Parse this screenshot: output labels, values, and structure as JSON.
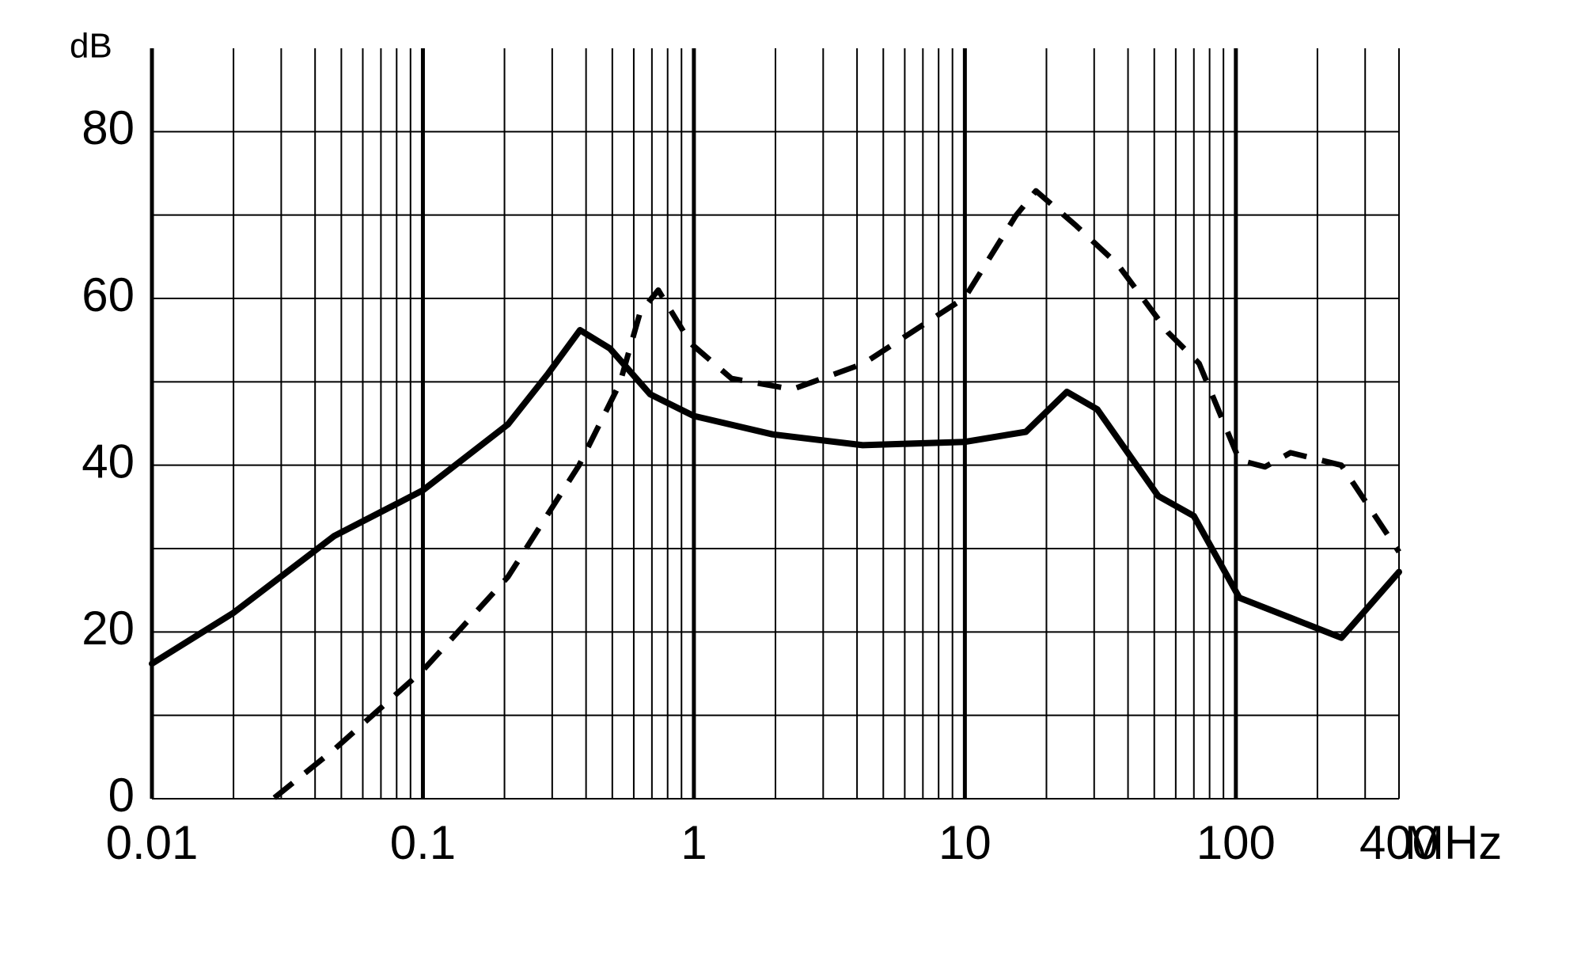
{
  "chart_data": {
    "type": "line",
    "x_label": "MHz",
    "y_label": "dB",
    "xscale": "log",
    "xlim": [
      0.01,
      400
    ],
    "ylim": [
      0,
      90
    ],
    "xticks": [
      0.01,
      0.1,
      1,
      10,
      100,
      400
    ],
    "yticks": [
      0,
      20,
      40,
      60,
      80
    ],
    "grid": true,
    "series": [
      {
        "color": "#000000",
        "dashed": false,
        "x": [
          0.01,
          0.02,
          0.047,
          0.1,
          0.206,
          0.29,
          0.38,
          0.49,
          0.69,
          1,
          1.95,
          4.2,
          10,
          16.8,
          23.8,
          30.8,
          51.7,
          70,
          103,
          159,
          245,
          400
        ],
        "values": [
          16.2,
          22.3,
          31.5,
          37,
          44.9,
          51,
          56.2,
          54,
          48.5,
          45.9,
          43.7,
          42.4,
          42.8,
          44,
          48.8,
          46.7,
          36.3,
          33.9,
          24.1,
          21.7,
          19.3,
          27.2
        ]
      },
      {
        "color": "#000000",
        "dashed": true,
        "x": [
          0.0283,
          0.047,
          0.1,
          0.206,
          0.377,
          0.533,
          0.633,
          0.739,
          0.974,
          1.376,
          2.31,
          4.23,
          10,
          15.4,
          18.3,
          25.8,
          36.6,
          56.3,
          73.2,
          103,
          128,
          159,
          245,
          400
        ],
        "values": [
          0.1,
          5.9,
          15.4,
          26.6,
          40,
          49.8,
          58.3,
          61,
          54.6,
          50.4,
          49.1,
          52.2,
          60.1,
          69.9,
          72.9,
          68.7,
          64.1,
          55.9,
          52.2,
          40.6,
          39.8,
          41.5,
          40,
          29.6
        ]
      }
    ]
  }
}
